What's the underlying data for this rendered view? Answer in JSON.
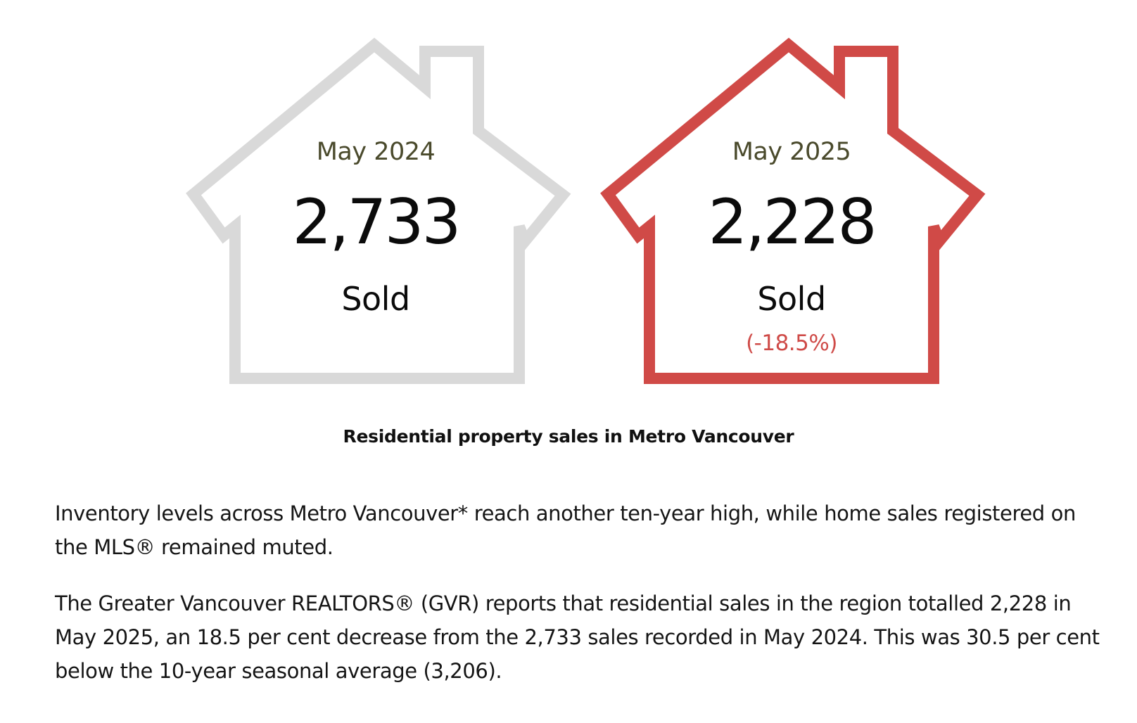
{
  "figure": {
    "houses": [
      {
        "period": "May 2024",
        "count": "2,733",
        "status": "Sold",
        "change": "",
        "outline_color": "#d9d9d9"
      },
      {
        "period": "May 2025",
        "count": "2,228",
        "status": "Sold",
        "change": "(-18.5%)",
        "outline_color": "#d04a47"
      }
    ],
    "caption": "Residential property sales in Metro Vancouver"
  },
  "article": {
    "paragraphs": [
      "Inventory levels across Metro Vancouver* reach another ten-year high, while home sales registered on the MLS® remained muted.",
      "The Greater Vancouver REALTORS® (GVR) reports that residential sales in the region totalled 2,228 in May 2025, an 18.5 per cent decrease from the 2,733 sales recorded in May 2024. This was 30.5 per cent below the 10-year seasonal average (3,206)."
    ]
  },
  "colors": {
    "accent_red": "#d04a47",
    "neutral_gray": "#d9d9d9",
    "period_text": "#4a4a2c",
    "change_text": "#cf4b48"
  }
}
